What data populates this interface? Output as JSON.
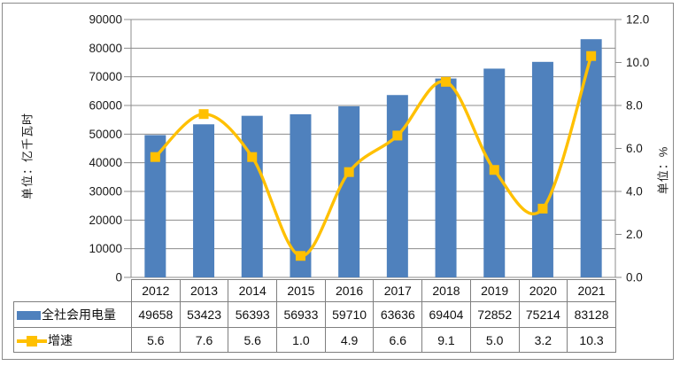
{
  "colors": {
    "bar": "#4F81BD",
    "line": "#FFC000",
    "marker": "#FFC000",
    "grid": "#8c8c8c",
    "axis": "#8c8c8c",
    "table_border": "#7f7f7f",
    "frame_border": "#8a8a8a",
    "text": "#1a1a1a",
    "background": "#ffffff"
  },
  "chart_data": {
    "type": "bar",
    "subtype": "column-line-combo",
    "title": "",
    "categories": [
      "2012",
      "2013",
      "2014",
      "2015",
      "2016",
      "2017",
      "2018",
      "2019",
      "2020",
      "2021"
    ],
    "series": [
      {
        "name": "全社会用电量",
        "type": "bar",
        "axis": "left",
        "color": "#4F81BD",
        "values": [
          49658,
          53423,
          56393,
          56933,
          59710,
          63636,
          69404,
          72852,
          75214,
          83128
        ]
      },
      {
        "name": "增速",
        "type": "line",
        "axis": "right",
        "color": "#FFC000",
        "smooth": true,
        "marker": "square",
        "values": [
          "5.6",
          "7.6",
          "5.6",
          "1.0",
          "4.9",
          "6.6",
          "9.1",
          "5.0",
          "3.2",
          "10.3"
        ]
      }
    ],
    "left_axis": {
      "title": "单位：亿千瓦时",
      "min": 0,
      "max": 90000,
      "step": 10000,
      "ticks": [
        "90000",
        "80000",
        "70000",
        "60000",
        "50000",
        "40000",
        "30000",
        "20000",
        "10000",
        "0"
      ]
    },
    "right_axis": {
      "title": "单位：%",
      "min": 0,
      "max": 12,
      "step": 2,
      "ticks": [
        "12.0",
        "10.0",
        "8.0",
        "6.0",
        "4.0",
        "2.0",
        "0.0"
      ]
    },
    "grid": "horizontal-on",
    "legend_position": "table-left-column"
  }
}
